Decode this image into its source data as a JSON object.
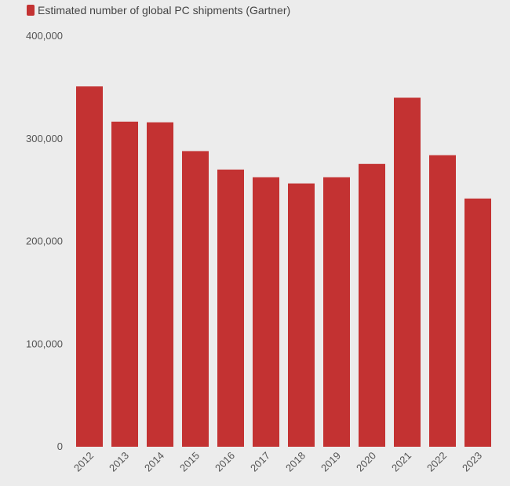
{
  "legend": {
    "label": "Estimated number of global PC shipments (Gartner)"
  },
  "colors": {
    "bar": "#c33232",
    "background": "#ececec"
  },
  "chart_data": {
    "type": "bar",
    "title": "",
    "xlabel": "",
    "ylabel": "",
    "categories": [
      "2012",
      "2013",
      "2014",
      "2015",
      "2016",
      "2017",
      "2018",
      "2019",
      "2020",
      "2021",
      "2022",
      "2023"
    ],
    "series": [
      {
        "name": "Estimated number of global PC shipments (Gartner)",
        "values": [
          351000,
          316700,
          316000,
          288000,
          270000,
          262500,
          256500,
          262500,
          275500,
          340000,
          284000,
          241800
        ]
      }
    ],
    "ylim": [
      0,
      400000
    ],
    "yticks": [
      0,
      100000,
      200000,
      300000,
      400000
    ],
    "ytick_labels": [
      "0",
      "100,000",
      "200,000",
      "300,000",
      "400,000"
    ],
    "grid": false,
    "legend_position": "top-left",
    "x_tick_rotation": -45
  }
}
